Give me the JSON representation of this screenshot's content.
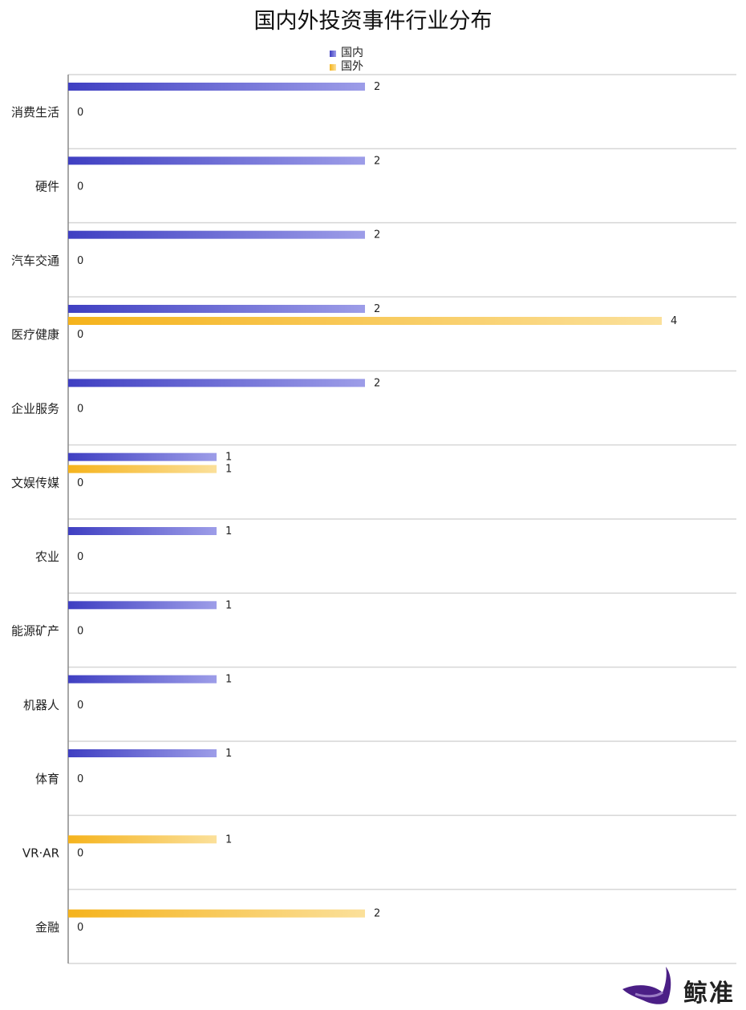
{
  "chart_data": {
    "type": "bar",
    "orientation": "horizontal",
    "title": "国内外投资事件行业分布",
    "categories": [
      "消费生活",
      "硬件",
      "汽车交通",
      "医疗健康",
      "企业服务",
      "文娱传媒",
      "农业",
      "能源矿产",
      "机器人",
      "体育",
      "VR·AR",
      "金融"
    ],
    "series": [
      {
        "name": "国内",
        "values": [
          2,
          2,
          2,
          2,
          2,
          1,
          1,
          1,
          1,
          1,
          null,
          null
        ],
        "color": "#3f3fc2"
      },
      {
        "name": "国外",
        "values": [
          null,
          null,
          null,
          4,
          null,
          1,
          null,
          null,
          null,
          null,
          1,
          2
        ],
        "color": "#f5b31c"
      }
    ],
    "zero_label": "0",
    "xlim": [
      0,
      4.5
    ],
    "grid": true,
    "legend_position": "top-center"
  },
  "logo": {
    "text": "鲸准"
  },
  "colors": {
    "domestic_start": "#3f3fc2",
    "domestic_end": "#9d9de8",
    "foreign_start": "#f5b31c",
    "foreign_end": "#fbe09a",
    "grid": "#d0d0d0"
  }
}
